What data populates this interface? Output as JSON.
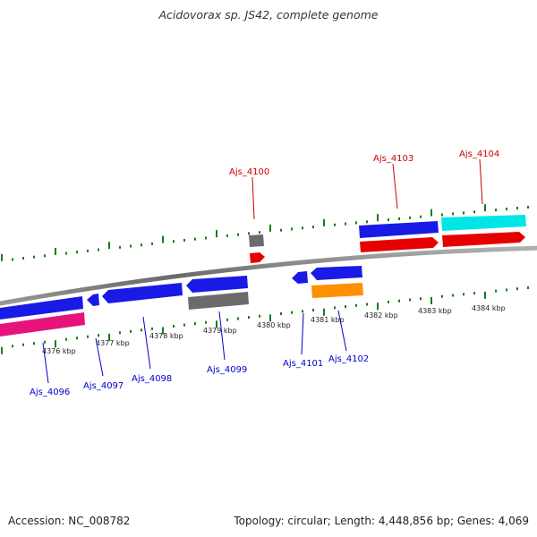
{
  "header": {
    "title": "Acidovorax sp. JS42, complete genome"
  },
  "footer": {
    "accession": "Accession: NC_008782",
    "summary": "Topology: circular; Length: 4,448,856 bp; Genes: 4,069"
  },
  "scale_labels": [
    "4376 kbp",
    "4377 kbp",
    "4378 kbp",
    "4379 kbp",
    "4380 kbp",
    "4381 kbp",
    "4382 kbp",
    "4383 kbp",
    "4384 kbp"
  ],
  "genes_top": [
    {
      "label": "Ajs_4100",
      "color": "#cc0000"
    },
    {
      "label": "Ajs_4103",
      "color": "#cc0000"
    },
    {
      "label": "Ajs_4104",
      "color": "#cc0000"
    }
  ],
  "genes_bottom": [
    {
      "label": "Ajs_4096",
      "color": "#0000cc"
    },
    {
      "label": "Ajs_4097",
      "color": "#0000cc"
    },
    {
      "label": "Ajs_4098",
      "color": "#0000cc"
    },
    {
      "label": "Ajs_4099",
      "color": "#0000cc"
    },
    {
      "label": "Ajs_4101",
      "color": "#0000cc"
    },
    {
      "label": "Ajs_4102",
      "color": "#0000cc"
    }
  ],
  "colors": {
    "blue": "#1a1ae6",
    "red": "#e60000",
    "cyan": "#00e6e6",
    "magenta": "#e6147a",
    "gray": "#6b6b6b",
    "orange": "#ff9000",
    "tick": "#1a7a1a",
    "backbone": "#7a7a7a"
  }
}
